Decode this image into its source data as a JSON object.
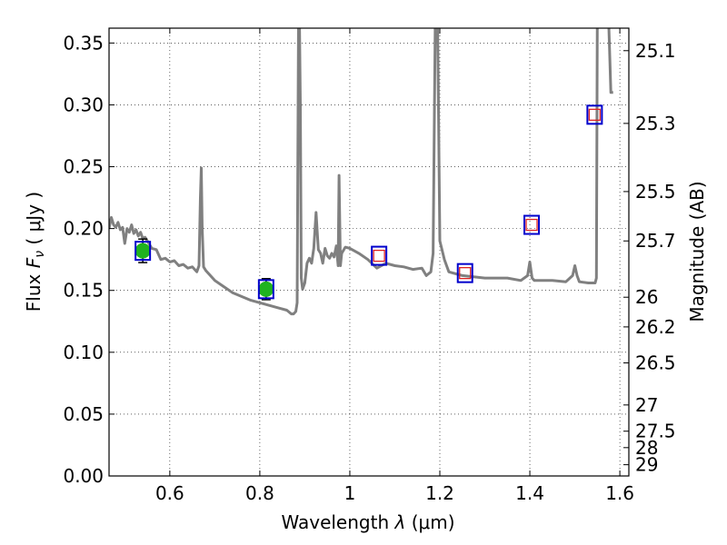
{
  "chart_data": {
    "type": "scatter",
    "xlabel": "Wavelength",
    "xlabel_symbol": "λ",
    "xlabel_unit": "(μm)",
    "ylabel": "Flux",
    "ylabel_symbol": "F",
    "ylabel_subscript": "ν",
    "ylabel_unit": "( μJy )",
    "y2label": "Magnitude (AB)",
    "xlim": [
      0.465,
      1.62
    ],
    "ylim": [
      0.0,
      0.362
    ],
    "xticks": [
      0.6,
      0.8,
      1.0,
      1.2,
      1.4,
      1.6
    ],
    "xtick_labels": [
      "0.6",
      "0.8",
      "1",
      "1.2",
      "1.4",
      "1.6"
    ],
    "yticks": [
      0.0,
      0.05,
      0.1,
      0.15,
      0.2,
      0.25,
      0.3,
      0.35
    ],
    "ytick_labels": [
      "0.00",
      "0.05",
      "0.10",
      "0.15",
      "0.20",
      "0.25",
      "0.30",
      "0.35"
    ],
    "y2ticks": [
      {
        "flux": 0.3438,
        "label": "25.1"
      },
      {
        "flux": 0.285,
        "label": "25.3"
      },
      {
        "flux": 0.2299,
        "label": "25.5"
      },
      {
        "flux": 0.19,
        "label": "25.7"
      },
      {
        "flux": 0.1445,
        "label": "26"
      },
      {
        "flux": 0.1205,
        "label": "26.2"
      },
      {
        "flux": 0.0914,
        "label": "26.5"
      },
      {
        "flux": 0.0574,
        "label": "27"
      },
      {
        "flux": 0.0362,
        "label": "27.5"
      },
      {
        "flux": 0.0229,
        "label": "28"
      },
      {
        "flux": 0.0091,
        "label": "29"
      }
    ],
    "grid": true,
    "series": [
      {
        "name": "model SED",
        "kind": "line",
        "color": "#808080",
        "x": [
          0.465,
          0.47,
          0.475,
          0.48,
          0.485,
          0.49,
          0.495,
          0.5,
          0.505,
          0.51,
          0.515,
          0.52,
          0.525,
          0.53,
          0.535,
          0.54,
          0.545,
          0.55,
          0.56,
          0.57,
          0.58,
          0.59,
          0.6,
          0.61,
          0.62,
          0.63,
          0.64,
          0.65,
          0.66,
          0.665,
          0.668,
          0.67,
          0.672,
          0.675,
          0.68,
          0.7,
          0.72,
          0.74,
          0.76,
          0.78,
          0.8,
          0.82,
          0.84,
          0.86,
          0.87,
          0.875,
          0.88,
          0.883,
          0.886,
          0.888,
          0.89,
          0.892,
          0.895,
          0.9,
          0.905,
          0.91,
          0.915,
          0.92,
          0.925,
          0.93,
          0.935,
          0.94,
          0.945,
          0.95,
          0.955,
          0.96,
          0.965,
          0.97,
          0.974,
          0.976,
          0.979,
          0.982,
          0.99,
          1.0,
          1.02,
          1.04,
          1.06,
          1.08,
          1.1,
          1.12,
          1.14,
          1.16,
          1.17,
          1.18,
          1.185,
          1.19,
          1.195,
          1.2,
          1.21,
          1.22,
          1.25,
          1.3,
          1.35,
          1.38,
          1.395,
          1.4,
          1.405,
          1.41,
          1.45,
          1.48,
          1.495,
          1.5,
          1.505,
          1.51,
          1.53,
          1.545,
          1.548,
          1.55,
          1.56,
          1.57,
          1.575,
          1.58,
          1.585
        ],
        "y": [
          0.2,
          0.209,
          0.203,
          0.201,
          0.205,
          0.199,
          0.201,
          0.188,
          0.2,
          0.197,
          0.203,
          0.196,
          0.199,
          0.194,
          0.197,
          0.192,
          0.193,
          0.19,
          0.184,
          0.183,
          0.175,
          0.176,
          0.173,
          0.174,
          0.17,
          0.171,
          0.168,
          0.169,
          0.165,
          0.17,
          0.225,
          0.249,
          0.2,
          0.169,
          0.166,
          0.158,
          0.153,
          0.148,
          0.145,
          0.142,
          0.14,
          0.138,
          0.136,
          0.134,
          0.131,
          0.131,
          0.133,
          0.14,
          0.37,
          0.37,
          0.3,
          0.16,
          0.151,
          0.156,
          0.172,
          0.176,
          0.172,
          0.184,
          0.213,
          0.183,
          0.18,
          0.172,
          0.184,
          0.178,
          0.176,
          0.18,
          0.177,
          0.186,
          0.17,
          0.243,
          0.17,
          0.18,
          0.185,
          0.184,
          0.18,
          0.175,
          0.168,
          0.172,
          0.17,
          0.169,
          0.167,
          0.168,
          0.162,
          0.165,
          0.18,
          0.37,
          0.37,
          0.19,
          0.175,
          0.165,
          0.162,
          0.16,
          0.16,
          0.158,
          0.162,
          0.173,
          0.16,
          0.158,
          0.158,
          0.157,
          0.162,
          0.17,
          0.162,
          0.157,
          0.156,
          0.156,
          0.16,
          0.37,
          0.37,
          0.37,
          0.37,
          0.31,
          0.31
        ]
      },
      {
        "name": "observed photometry",
        "kind": "points",
        "marker": "circle",
        "color": "#1fb31f",
        "points": [
          {
            "x": 0.54,
            "y": 0.182,
            "yerr": 0.0095
          },
          {
            "x": 0.814,
            "y": 0.151,
            "yerr": 0.0085
          }
        ]
      },
      {
        "name": "model photometry",
        "kind": "points",
        "marker": "square",
        "color": "#0000cc",
        "points": [
          {
            "x": 0.54,
            "y": 0.182
          },
          {
            "x": 0.814,
            "y": 0.151
          },
          {
            "x": 1.065,
            "y": 0.178
          },
          {
            "x": 1.256,
            "y": 0.164
          },
          {
            "x": 1.404,
            "y": 0.203
          },
          {
            "x": 1.544,
            "y": 0.292
          }
        ]
      },
      {
        "name": "upper limits",
        "kind": "points",
        "marker": "open-square",
        "color": "#dd2222",
        "points": [
          {
            "x": 1.065,
            "y": 0.178
          },
          {
            "x": 1.256,
            "y": 0.164
          },
          {
            "x": 1.404,
            "y": 0.203
          },
          {
            "x": 1.544,
            "y": 0.292
          }
        ]
      }
    ]
  }
}
